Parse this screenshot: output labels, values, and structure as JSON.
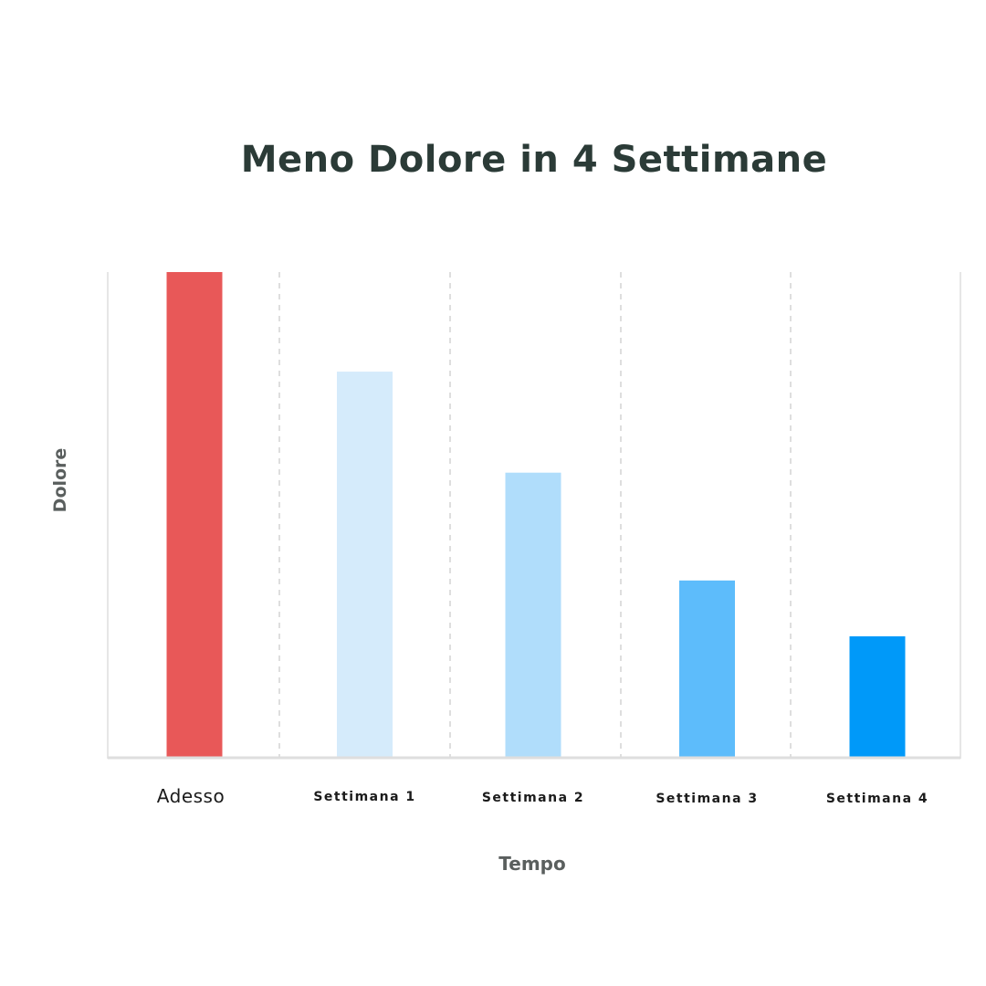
{
  "chart_data": {
    "type": "bar",
    "title": "Meno Dolore in 4 Settimane",
    "xlabel": "Tempo",
    "ylabel": "Dolore",
    "categories": [
      "Adesso",
      "Settimana 1",
      "Settimana 2",
      "Settimana 3",
      "Settimana 4"
    ],
    "values": [
      100,
      79.5,
      58.7,
      36.5,
      25
    ],
    "ylim": [
      0,
      100
    ],
    "grid": "vertical dashed separators",
    "colors": [
      "#e85858",
      "#d5ebfb",
      "#b0ddfb",
      "#5dbcfb",
      "#0099f9"
    ],
    "highlight_label_color": "#e85858",
    "tick_label_color": "#1b1b1b"
  }
}
